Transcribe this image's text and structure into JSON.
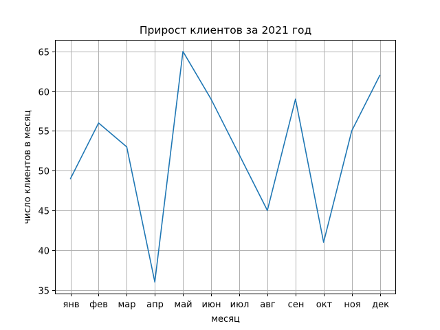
{
  "chart_data": {
    "type": "line",
    "title": "Прирост клиентов за 2021 год",
    "xlabel": "месяц",
    "ylabel": "число клиентов в месяц",
    "categories": [
      "янв",
      "фев",
      "мар",
      "апр",
      "май",
      "июн",
      "июл",
      "авг",
      "сен",
      "окт",
      "ноя",
      "дек"
    ],
    "series": [
      {
        "values": [
          49,
          56,
          53,
          36,
          65,
          59,
          52,
          45,
          59,
          41,
          55,
          62
        ]
      }
    ],
    "yticks": [
      35,
      40,
      45,
      50,
      55,
      60,
      65
    ],
    "ylim": [
      34.55,
      66.45
    ],
    "grid": true,
    "line_color": "#1f77b4"
  }
}
